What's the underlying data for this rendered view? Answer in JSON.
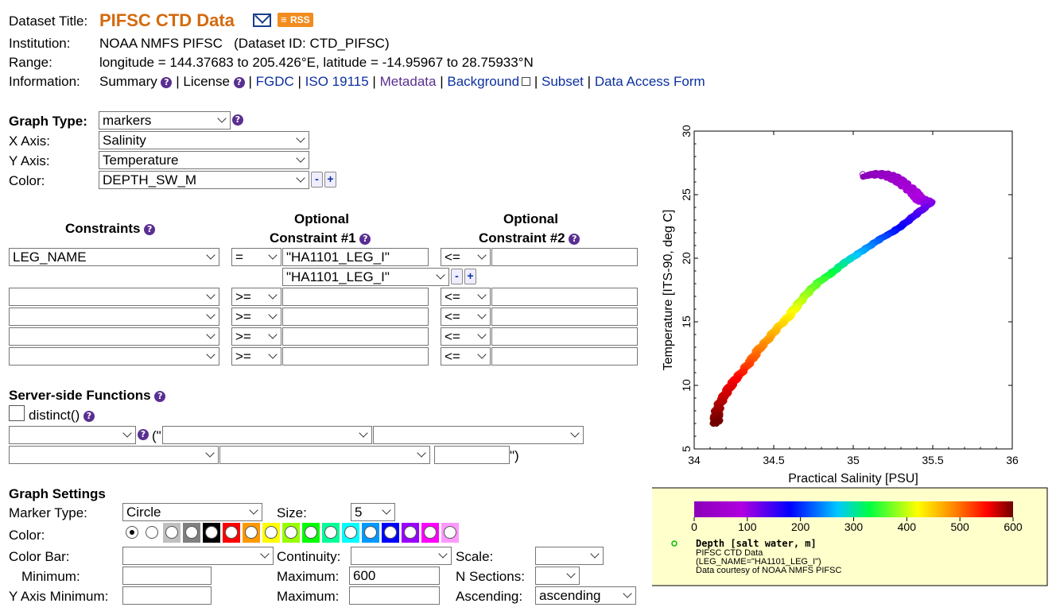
{
  "header": {
    "dataset_title_label": "Dataset Title:",
    "dataset_title": "PIFSC CTD Data",
    "rss_label": "RSS",
    "institution_label": "Institution:",
    "institution": "NOAA NMFS PIFSC   (Dataset ID: CTD_PIFSC)",
    "range_label": "Range:",
    "range": "longitude = 144.37683 to 205.426°E, latitude = -14.95967 to 28.75933°N",
    "information_label": "Information:",
    "links": {
      "summary": "Summary",
      "license": "License",
      "fgdc": "FGDC",
      "iso": "ISO 19115",
      "metadata": "Metadata",
      "background": "Background",
      "subset": "Subset",
      "daf": "Data Access Form"
    },
    "sep": "|"
  },
  "graph": {
    "graph_type_label": "Graph Type:",
    "graph_type": "markers",
    "x_axis_label": "X Axis:",
    "x_axis": "Salinity",
    "y_axis_label": "Y Axis:",
    "y_axis": "Temperature",
    "color_label": "Color:",
    "color": "DEPTH_SW_M"
  },
  "constraints": {
    "header_main": "Constraints",
    "header_opt1_line1": "Optional",
    "header_opt1_line2": "Constraint #1",
    "header_opt2_line1": "Optional",
    "header_opt2_line2": "Constraint #2",
    "rows": [
      {
        "var": "LEG_NAME",
        "op1": "=",
        "val1": "\"HA1101_LEG_I\"",
        "op2": "<=",
        "val2": ""
      },
      {
        "var": "",
        "op1": ">=",
        "val1": "",
        "op2": "<=",
        "val2": ""
      },
      {
        "var": "",
        "op1": ">=",
        "val1": "",
        "op2": "<=",
        "val2": ""
      },
      {
        "var": "",
        "op1": ">=",
        "val1": "",
        "op2": "<=",
        "val2": ""
      },
      {
        "var": "",
        "op1": ">=",
        "val1": "",
        "op2": "<=",
        "val2": ""
      }
    ],
    "distinct_values_select": "\"HA1101_LEG_I\""
  },
  "server_functions": {
    "title": "Server-side Functions",
    "distinct": "distinct()",
    "open_paren": "(\"",
    "close_paren": "\")"
  },
  "graph_settings": {
    "title": "Graph Settings",
    "marker_type_label": "Marker Type:",
    "marker_type": "Circle",
    "size_label": "Size:",
    "size": "5",
    "color_label": "Color:",
    "swatches": [
      "#ffffff",
      "#ffffff",
      "#c0c0c0",
      "#808080",
      "#000000",
      "#ff0000",
      "#ff9900",
      "#ffff00",
      "#99ff00",
      "#00ff00",
      "#00ff99",
      "#00ffff",
      "#0099ff",
      "#0000ff",
      "#9900ff",
      "#ff00ff",
      "#ff99ff"
    ],
    "color_bar_label": "Color Bar:",
    "color_bar": "",
    "continuity_label": "Continuity:",
    "continuity": "",
    "scale_label": "Scale:",
    "scale": "",
    "minimum_label": "Minimum:",
    "minimum": "",
    "maximum_label": "Maximum:",
    "maximum": "600",
    "n_sections_label": "N Sections:",
    "n_sections": "",
    "y_axis_min_label": "Y Axis Minimum:",
    "y_axis_min": "",
    "y_axis_max_label": "Maximum:",
    "y_axis_max": "",
    "ascending_label": "Ascending:",
    "ascending": "ascending"
  },
  "chart_data": {
    "type": "scatter",
    "xlabel": "Practical Salinity [PSU]",
    "ylabel": "Temperature [ITS-90, deg C]",
    "xlim": [
      34,
      36
    ],
    "ylim": [
      5,
      30
    ],
    "x_ticks": [
      "34",
      "34.5",
      "35",
      "35.5",
      "36"
    ],
    "y_ticks": [
      "5",
      "10",
      "15",
      "20",
      "25",
      "30"
    ],
    "series": [
      {
        "x": [
          35.08,
          35.12,
          35.18,
          35.22,
          35.26,
          35.3,
          35.34,
          35.38,
          35.4,
          35.42,
          35.45,
          35.48,
          35.42,
          35.36,
          35.3,
          35.24,
          35.18,
          35.12,
          35.06,
          35.0,
          34.95,
          34.9,
          34.85,
          34.79,
          34.73,
          34.68,
          34.63,
          34.58,
          34.52,
          34.47,
          34.41,
          34.36,
          34.31,
          34.26,
          34.22,
          34.18,
          34.15,
          34.14,
          34.14
        ],
        "y": [
          26.5,
          26.6,
          26.6,
          26.5,
          26.3,
          26.0,
          25.6,
          25.2,
          24.9,
          24.6,
          24.5,
          24.3,
          23.7,
          23.1,
          22.5,
          22.0,
          21.6,
          21.1,
          20.6,
          20.1,
          19.7,
          19.2,
          18.7,
          18.2,
          17.5,
          16.8,
          16.0,
          15.2,
          14.5,
          13.7,
          12.9,
          12.0,
          11.2,
          10.5,
          9.8,
          9.0,
          8.3,
          7.6,
          7.0
        ],
        "depth": [
          0,
          10,
          20,
          30,
          40,
          50,
          60,
          70,
          80,
          90,
          100,
          110,
          130,
          150,
          170,
          190,
          210,
          230,
          250,
          270,
          290,
          310,
          330,
          350,
          370,
          390,
          410,
          430,
          450,
          470,
          490,
          510,
          530,
          550,
          560,
          570,
          580,
          590,
          600
        ]
      }
    ],
    "colorbar": {
      "ticks": [
        "0",
        "100",
        "200",
        "300",
        "400",
        "500",
        "600"
      ],
      "range": [
        0,
        600
      ],
      "title": "Depth [salt water, m]",
      "notes": [
        "PIFSC CTD Data",
        "(LEG_NAME=\"HA1101_LEG_I\")",
        "Data courtesy of NOAA NMFS PIFSC"
      ]
    }
  }
}
